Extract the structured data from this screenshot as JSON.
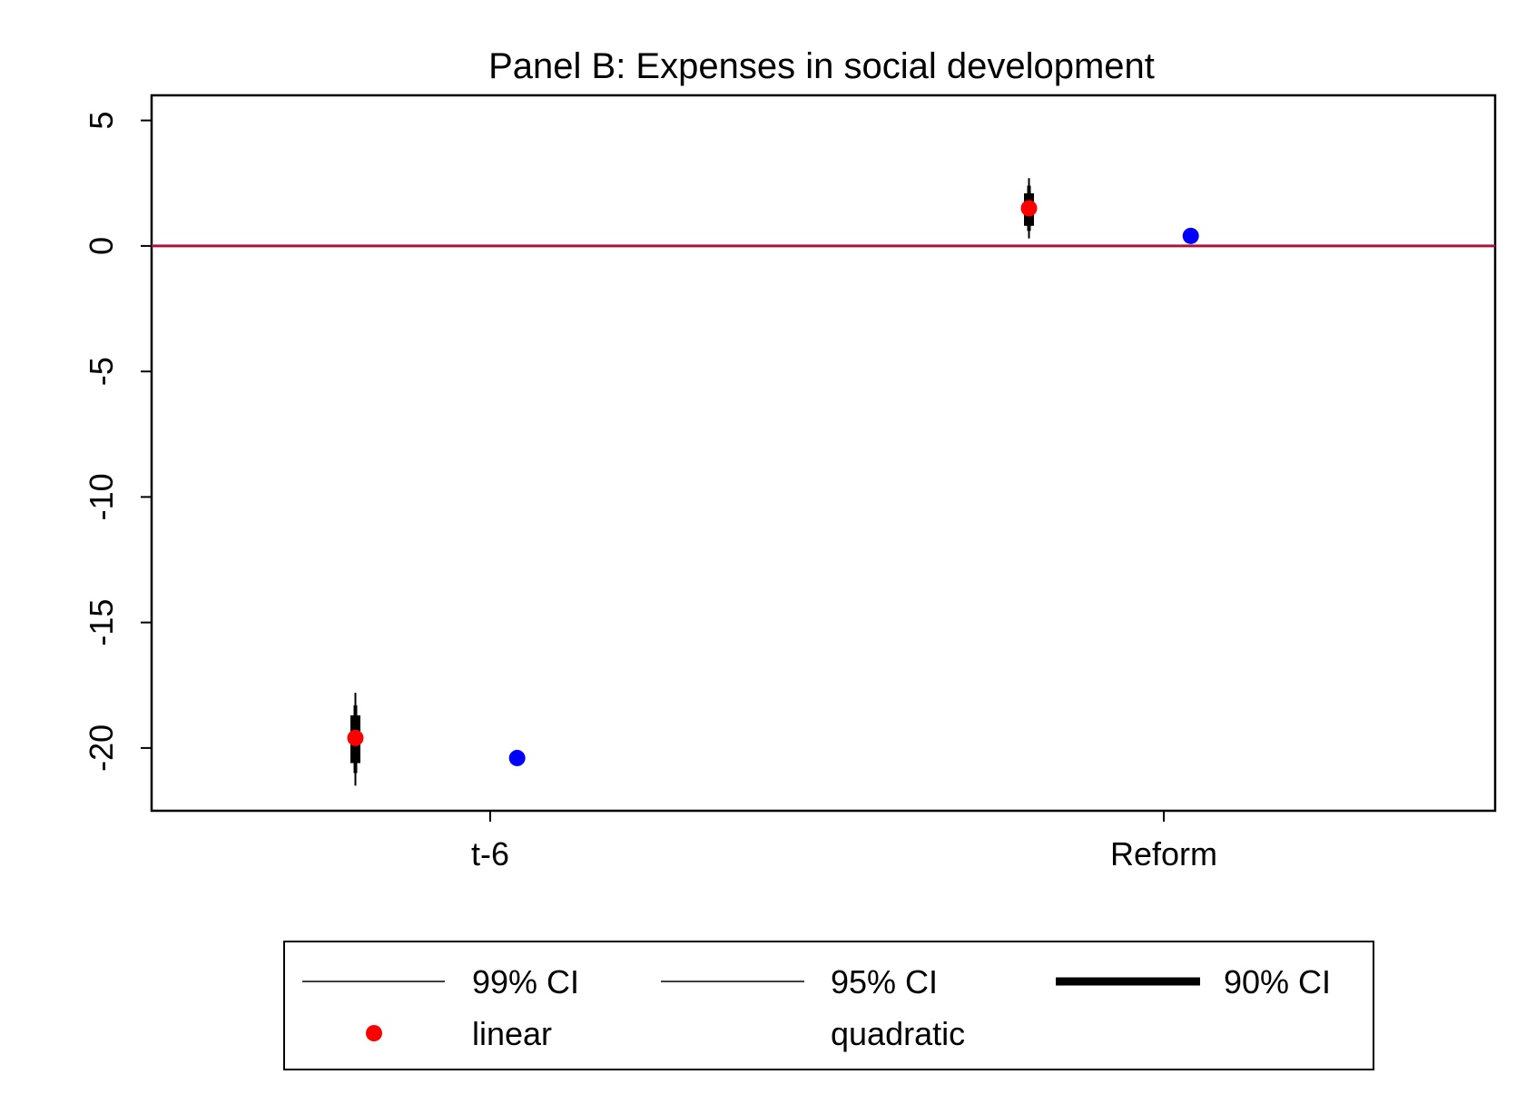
{
  "chart_data": {
    "type": "scatter",
    "title": "Panel B: Expenses in social development",
    "xlabel": "",
    "ylabel": "",
    "categories": [
      "t-6",
      "Reform"
    ],
    "ylim": [
      -22.5,
      6
    ],
    "yticks": [
      5,
      0,
      -5,
      -10,
      -15,
      -20
    ],
    "ytick_labels": [
      "5",
      "0",
      "-5",
      "-10",
      "-15",
      "-20"
    ],
    "reference_line": {
      "y": 0,
      "color": "#b0103a"
    },
    "series": [
      {
        "name": "linear",
        "color": "#ff0000",
        "offset": -0.5,
        "points": [
          {
            "category": "t-6",
            "value": -19.6,
            "ci99": [
              -21.5,
              -17.8
            ],
            "ci95": [
              -21.0,
              -18.3
            ],
            "ci90": [
              -20.6,
              -18.7
            ]
          },
          {
            "category": "Reform",
            "value": 1.5,
            "ci99": [
              0.3,
              2.7
            ],
            "ci95": [
              0.6,
              2.4
            ],
            "ci90": [
              0.8,
              2.1
            ]
          }
        ]
      },
      {
        "name": "quadratic",
        "color": "#0000ff",
        "offset": 0.1,
        "points": [
          {
            "category": "t-6",
            "value": -20.4
          },
          {
            "category": "Reform",
            "value": 0.4
          }
        ]
      }
    ],
    "legend": {
      "position": "bottom",
      "items": [
        {
          "label": "99% CI",
          "kind": "line-thin"
        },
        {
          "label": "95% CI",
          "kind": "line-thin"
        },
        {
          "label": "90% CI",
          "kind": "line-thick"
        },
        {
          "label": "linear",
          "kind": "marker",
          "color": "#ff0000"
        },
        {
          "label": "quadratic",
          "kind": "none"
        }
      ]
    }
  }
}
